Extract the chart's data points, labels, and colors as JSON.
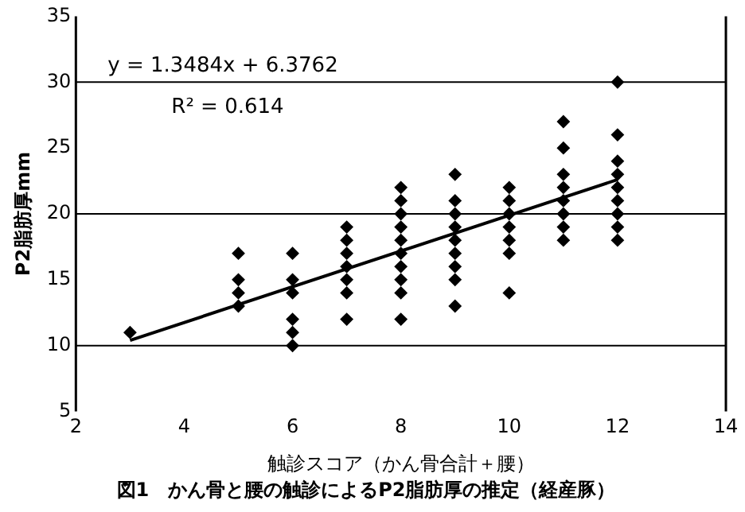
{
  "chart_data": {
    "type": "scatter",
    "title": "図1　かん骨と腰の触診によるP2脂肪厚の推定（経産豚）",
    "xlabel": "触診スコア（かん骨合計＋腰）",
    "ylabel": "P2脂肪厚mm",
    "annotations": [
      "y = 1.3484x + 6.3762",
      "R² = 0.614"
    ],
    "series": [
      {
        "color": "#000000",
        "marker": "diamond",
        "x": [
          3,
          5,
          5,
          5,
          5,
          6,
          6,
          6,
          6,
          6,
          6,
          7,
          7,
          7,
          7,
          7,
          7,
          7,
          8,
          8,
          8,
          8,
          8,
          8,
          8,
          8,
          8,
          8,
          9,
          9,
          9,
          9,
          9,
          9,
          9,
          9,
          9,
          10,
          10,
          10,
          10,
          10,
          10,
          10,
          11,
          11,
          11,
          11,
          11,
          11,
          11,
          11,
          12,
          12,
          12,
          12,
          12,
          12,
          12,
          12,
          12
        ],
        "values": [
          11,
          17,
          15,
          14,
          13,
          17,
          15,
          14,
          12,
          11,
          10,
          19,
          18,
          17,
          16,
          15,
          14,
          12,
          22,
          21,
          20,
          19,
          18,
          17,
          16,
          15,
          14,
          12,
          23,
          21,
          20,
          19,
          18,
          17,
          16,
          15,
          13,
          22,
          21,
          20,
          19,
          18,
          17,
          14,
          27,
          25,
          23,
          22,
          21,
          20,
          19,
          18,
          30,
          26,
          24,
          23,
          22,
          21,
          20,
          19,
          18
        ]
      },
      {
        "type": "line",
        "color": "#000000",
        "marker": "none",
        "x": [
          3,
          12
        ],
        "values": [
          10.4,
          22.6
        ]
      }
    ],
    "xlim": [
      2,
      14
    ],
    "xticks": [
      2,
      4,
      6,
      8,
      10,
      12,
      14
    ],
    "ylim": [
      5,
      35
    ],
    "yticks": [
      5,
      10,
      15,
      20,
      25,
      30,
      35
    ],
    "ref_lines": [
      {
        "axis": "y",
        "value": 10,
        "color": "#000000"
      },
      {
        "axis": "y",
        "value": 20,
        "color": "#000000"
      },
      {
        "axis": "y",
        "value": 30,
        "color": "#000000"
      }
    ],
    "grid": false,
    "legend": false
  }
}
